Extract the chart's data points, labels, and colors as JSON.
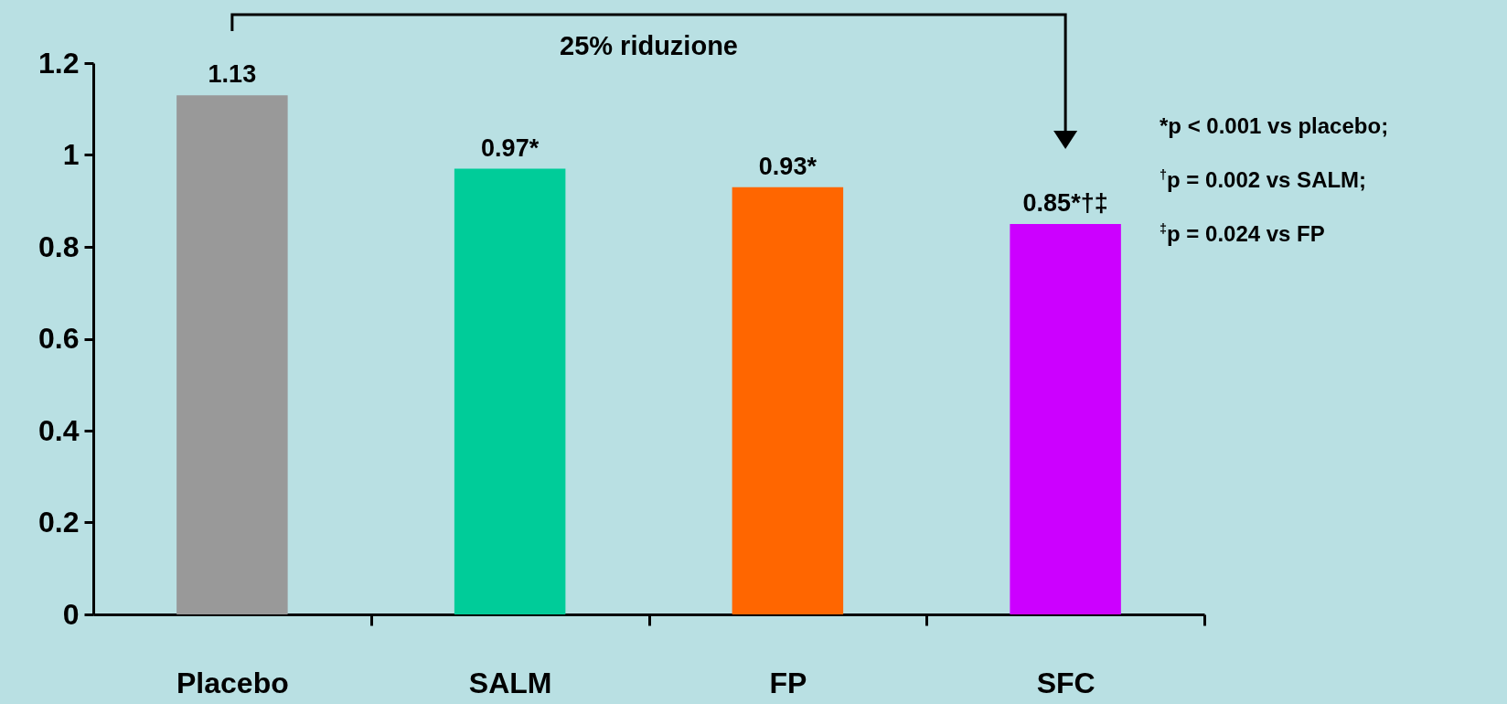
{
  "chart_data": {
    "type": "bar",
    "categories": [
      "Placebo",
      "SALM",
      "FP",
      "SFC"
    ],
    "values": [
      1.13,
      0.97,
      0.93,
      0.85
    ],
    "colors": [
      "#999999",
      "#00cc99",
      "#ff6600",
      "#cc00ff"
    ],
    "value_labels": [
      "1.13",
      "0.97*",
      "0.93*",
      "0.85*†‡"
    ],
    "ylim": [
      0,
      1.2
    ],
    "yticks": [
      0,
      0.2,
      0.4,
      0.6,
      0.8,
      1,
      1.2
    ],
    "grid": false,
    "legend": false,
    "annotations": [
      "25% riduzione",
      "*p < 0.001 vs placebo;",
      "$^{†}$p = 0.002 vs SALM;",
      "$^{‡}$p = 0.024 vs FP"
    ]
  }
}
